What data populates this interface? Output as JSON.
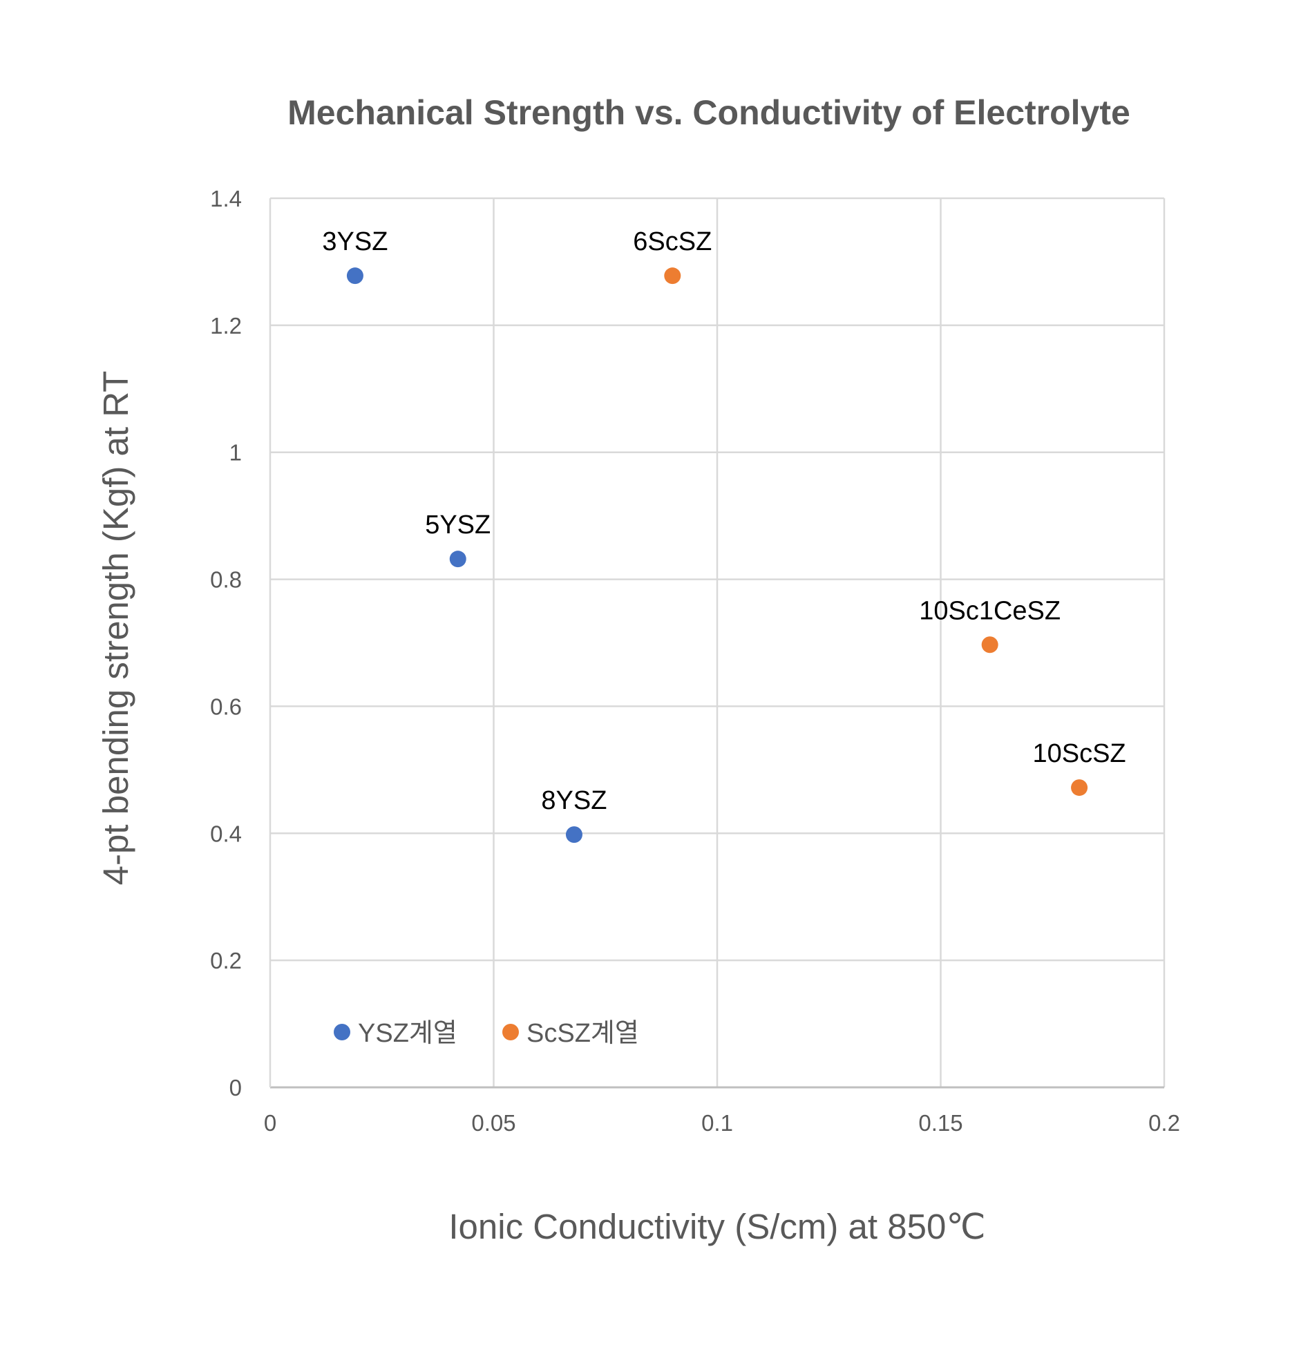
{
  "chart_data": {
    "type": "scatter",
    "title": "Mechanical Strength vs. Conductivity of Electrolyte",
    "xlabel": "Ionic Conductivity (S/cm) at 850℃",
    "ylabel": "4-pt bending strength (Kgf) at RT",
    "xlim": [
      0,
      0.2
    ],
    "ylim": [
      0,
      1.4
    ],
    "xticks": [
      0,
      0.05,
      0.1,
      0.15,
      0.2
    ],
    "xtick_labels": [
      "0",
      "0.05",
      "0.1",
      "0.15",
      "0.2"
    ],
    "yticks": [
      0,
      0.2,
      0.4,
      0.6,
      0.8,
      1.0,
      1.2,
      1.4
    ],
    "ytick_labels": [
      "0",
      "0.2",
      "0.4",
      "0.6",
      "0.8",
      "1",
      "1.2",
      "1.4"
    ],
    "grid": true,
    "legend_position": "bottom-left",
    "series": [
      {
        "name": "YSZ계열",
        "color": "#4472C4",
        "points": [
          {
            "label": "3YSZ",
            "x": 0.019,
            "y": 1.278
          },
          {
            "label": "5YSZ",
            "x": 0.042,
            "y": 0.832
          },
          {
            "label": "8YSZ",
            "x": 0.068,
            "y": 0.398
          }
        ]
      },
      {
        "name": "ScSZ계열",
        "color": "#ED7D31",
        "points": [
          {
            "label": "6ScSZ",
            "x": 0.09,
            "y": 1.278
          },
          {
            "label": "10Sc1CeSZ",
            "x": 0.161,
            "y": 0.697
          },
          {
            "label": "10ScSZ",
            "x": 0.181,
            "y": 0.472
          }
        ]
      }
    ]
  }
}
